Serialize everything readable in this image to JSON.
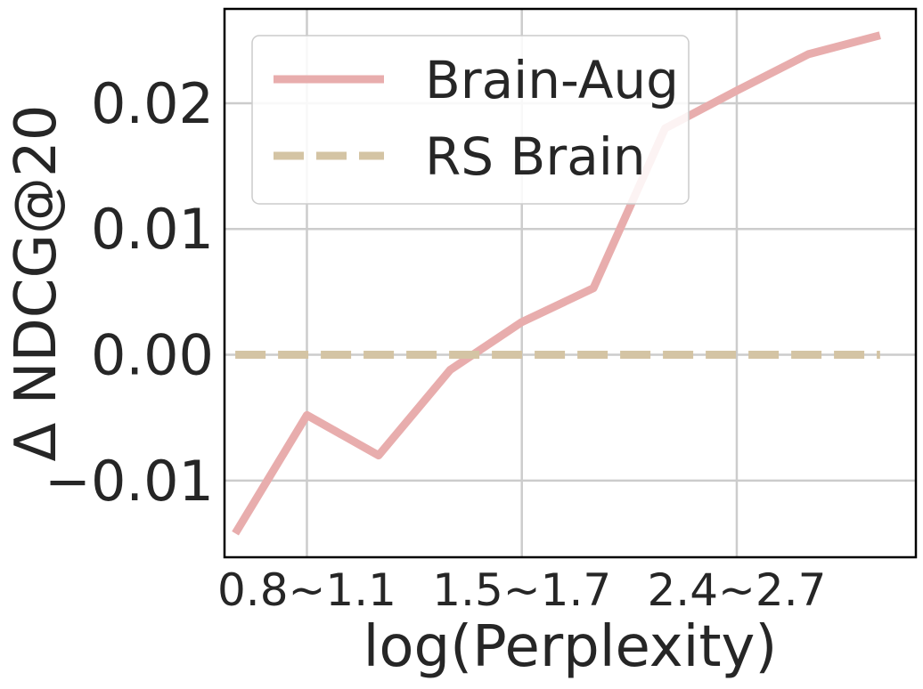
{
  "chart_data": {
    "type": "line",
    "xlabel": "log(Perplexity)",
    "ylabel": "Δ NDCG@20",
    "x_tick_labels": [
      "0.8~1.1",
      "1.5~1.7",
      "2.4~2.7"
    ],
    "x_tick_positions": [
      1,
      4,
      7
    ],
    "y_ticks": [
      -0.01,
      0.0,
      0.01,
      0.02
    ],
    "y_tick_labels": [
      "−0.01",
      "0.00",
      "0.01",
      "0.02"
    ],
    "ylim": [
      -0.0161,
      0.0275
    ],
    "xlim": [
      -0.15,
      9.5
    ],
    "grid": true,
    "legend": {
      "placement": "top-left"
    },
    "series": [
      {
        "name": "Brain-Aug",
        "color": "#e8adad",
        "style": "solid",
        "x": [
          0,
          1,
          2,
          3,
          4,
          5,
          6,
          7,
          8,
          9
        ],
        "y": [
          -0.0142,
          -0.0048,
          -0.008,
          -0.0012,
          0.0026,
          0.0053,
          0.018,
          0.021,
          0.0239,
          0.0254
        ]
      },
      {
        "name": "RS Brain",
        "color": "#d4c4a4",
        "style": "dashed",
        "x": [
          0,
          1,
          2,
          3,
          4,
          5,
          6,
          7,
          8,
          9
        ],
        "y": [
          0,
          0,
          0,
          0,
          0,
          0,
          0,
          0,
          0,
          0
        ]
      }
    ]
  }
}
